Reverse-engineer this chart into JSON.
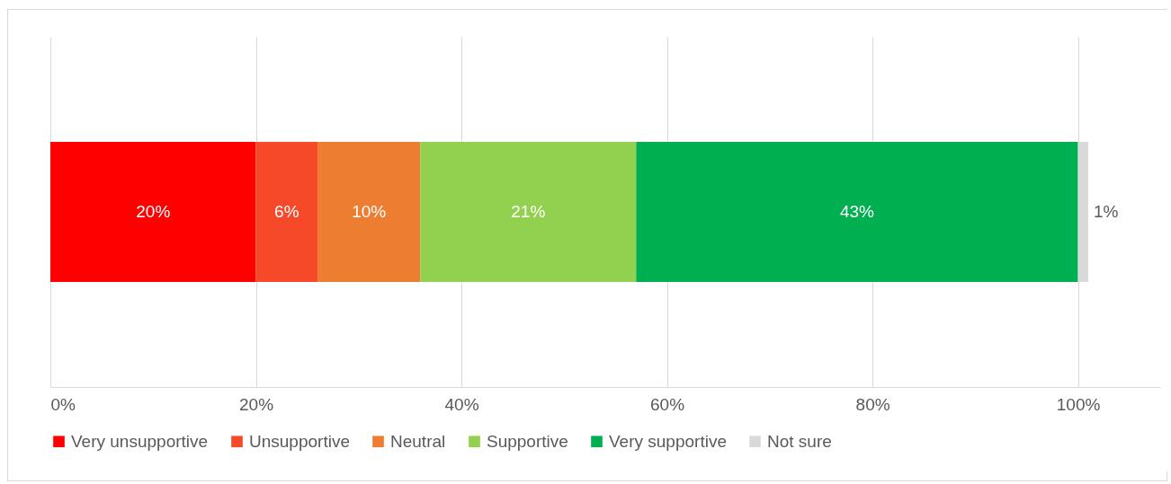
{
  "chart_data": {
    "type": "bar",
    "orientation": "horizontal",
    "stacked": true,
    "categories": [
      null
    ],
    "series": [
      {
        "name": "Very unsupportive",
        "color": "#ff0000",
        "values": [
          20
        ],
        "value_labels": [
          "20%"
        ]
      },
      {
        "name": "Unsupportive",
        "color": "#f5492a",
        "values": [
          6
        ],
        "value_labels": [
          "6%"
        ]
      },
      {
        "name": "Neutral",
        "color": "#ed7d31",
        "values": [
          10
        ],
        "value_labels": [
          "10%"
        ]
      },
      {
        "name": "Supportive",
        "color": "#92d050",
        "values": [
          21
        ],
        "value_labels": [
          "21%"
        ]
      },
      {
        "name": "Very supportive",
        "color": "#00b050",
        "values": [
          43
        ],
        "value_labels": [
          "43%"
        ]
      },
      {
        "name": "Not sure",
        "color": "#d9d9d9",
        "values": [
          1
        ],
        "value_labels": [
          "1%"
        ]
      }
    ],
    "xlim": [
      0,
      108
    ],
    "xticks": [
      {
        "value": 0,
        "label": "0%"
      },
      {
        "value": 20,
        "label": "20%"
      },
      {
        "value": 40,
        "label": "40%"
      },
      {
        "value": 60,
        "label": "60%"
      },
      {
        "value": 80,
        "label": "80%"
      },
      {
        "value": 100,
        "label": "100%"
      }
    ],
    "grid": "x",
    "legend": "bottom"
  }
}
